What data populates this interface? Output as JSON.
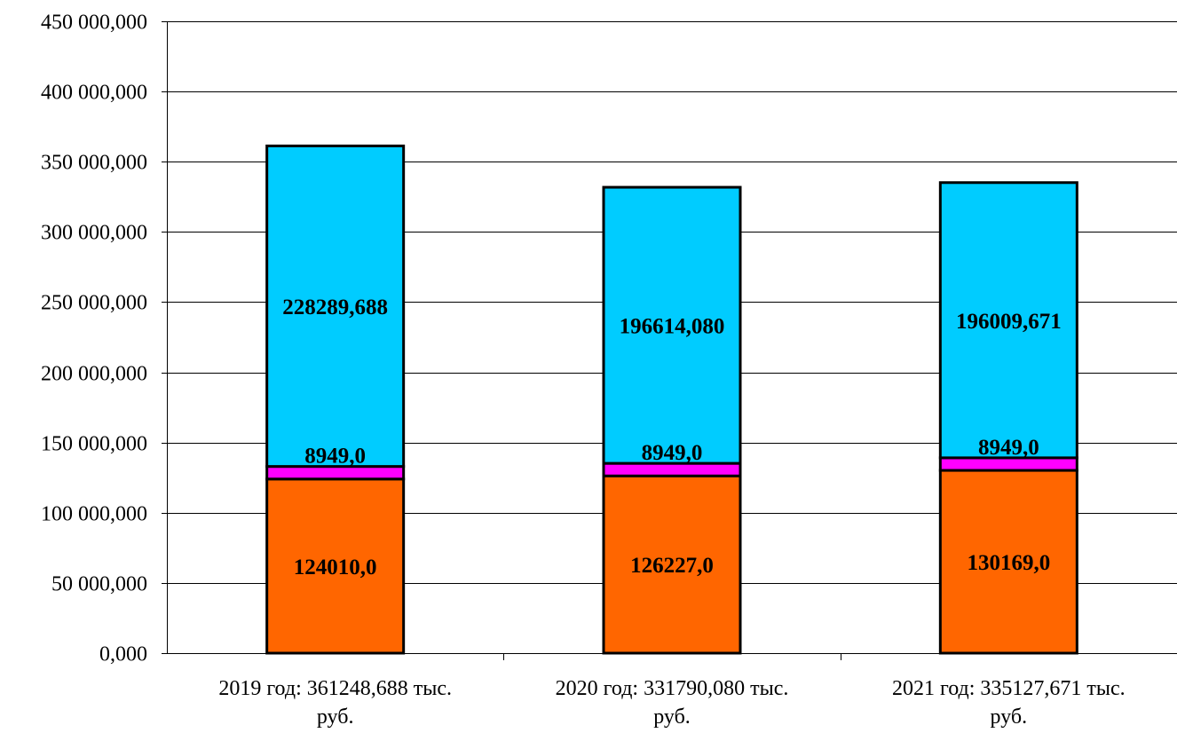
{
  "chart_data": {
    "type": "bar",
    "stacked": true,
    "categories": [
      [
        "2019 год: 361248,688 тыс.",
        "руб."
      ],
      [
        "2020 год: 331790,080 тыс.",
        "руб."
      ],
      [
        "2021 год: 335127,671 тыс.",
        "руб."
      ]
    ],
    "series": [
      {
        "values": [
          124010000,
          126227000,
          130169000
        ],
        "labels": [
          "124010,0",
          "126227,0",
          "130169,0"
        ],
        "color": "#FF6600"
      },
      {
        "values": [
          8949000,
          8949000,
          8949000
        ],
        "labels": [
          "8949,0",
          "8949,0",
          "8949,0"
        ],
        "color": "#FF00FF"
      },
      {
        "values": [
          228289688,
          196614080,
          196009671
        ],
        "labels": [
          "228289,688",
          "196614,080",
          "196009,671"
        ],
        "color": "#00CCFF"
      }
    ],
    "ylim": [
      0,
      450000000
    ],
    "yticks": [
      0,
      50000000,
      100000000,
      150000000,
      200000000,
      250000000,
      300000000,
      350000000,
      400000000,
      450000000
    ],
    "ytick_labels": [
      "0,000",
      "50 000,000",
      "100 000,000",
      "150 000,000",
      "200 000,000",
      "250 000,000",
      "300 000,000",
      "350 000,000",
      "400 000,000",
      "450 000,000"
    ],
    "grid": true,
    "legend": "none"
  }
}
